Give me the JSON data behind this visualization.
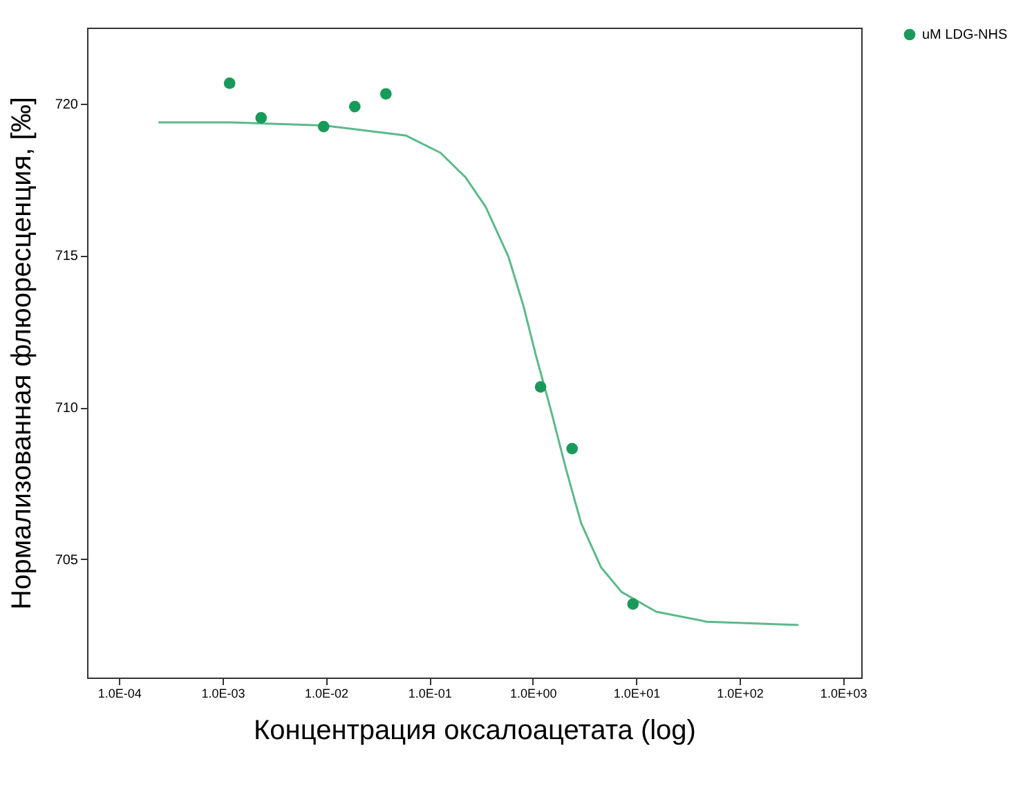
{
  "chart_data": {
    "type": "scatter",
    "xlabel": "Концентрация оксалоацетата (log)",
    "ylabel": "Нормализованная флюоресценция, [‰]",
    "log": "x",
    "xlim": [
      4.9e-05,
      1500
    ],
    "ylim": [
      701.1,
      722.5
    ],
    "xticks": [
      {
        "value": 0.0001,
        "label": "1.0E-04"
      },
      {
        "value": 0.001,
        "label": "1.0E-03"
      },
      {
        "value": 0.01,
        "label": "1.0E-02"
      },
      {
        "value": 0.1,
        "label": "1.0E-01"
      },
      {
        "value": 1,
        "label": "1.0E+00"
      },
      {
        "value": 10,
        "label": "1.0E+01"
      },
      {
        "value": 100,
        "label": "1.0E+02"
      },
      {
        "value": 1000,
        "label": "1.0E+03"
      }
    ],
    "yticks": [
      705,
      710,
      715,
      720
    ],
    "grid": false,
    "legend": "top right",
    "marker": "circle",
    "series": [
      {
        "type": "line",
        "color": "#5cb88a",
        "line_style": "solid",
        "marker": "none",
        "x": [
          0.00024,
          0.0012,
          0.0095,
          0.059,
          0.128,
          0.224,
          0.35,
          0.58,
          0.81,
          1.07,
          1.49,
          2.09,
          2.93,
          4.57,
          7.2,
          15.6,
          48,
          370
        ],
        "values": [
          719.38,
          719.38,
          719.28,
          718.95,
          718.38,
          717.57,
          716.6,
          714.97,
          713.35,
          711.72,
          709.93,
          707.98,
          706.19,
          704.73,
          703.92,
          703.27,
          702.94,
          702.83
        ]
      },
      {
        "name": "uM LDG-NHS",
        "color": "#1a9a5a",
        "x": [
          0.00117,
          0.00236,
          0.0095,
          0.019,
          0.038,
          1.19,
          2.4,
          9.3
        ],
        "values": [
          720.67,
          719.53,
          719.24,
          719.9,
          720.32,
          710.67,
          708.64,
          703.52
        ]
      }
    ]
  }
}
